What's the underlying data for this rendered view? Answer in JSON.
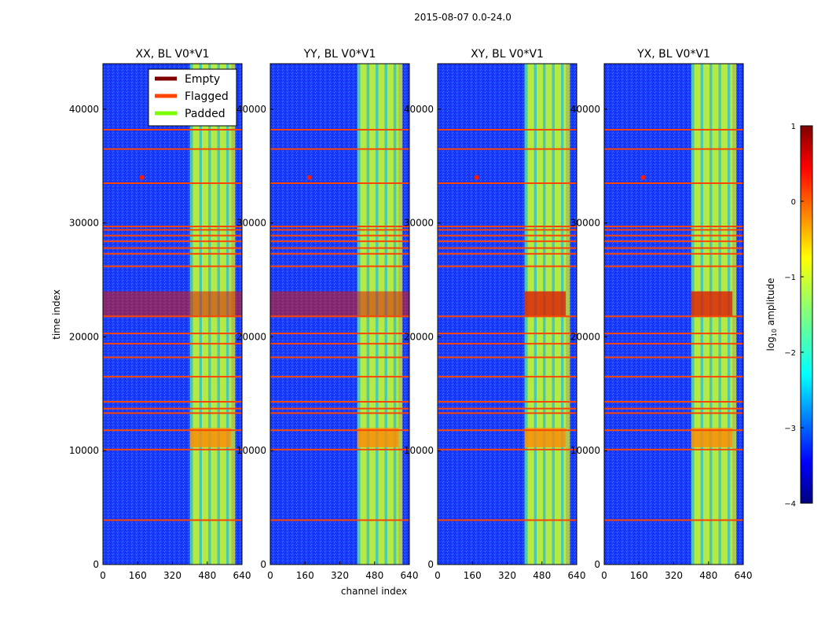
{
  "figure_title": "2015-08-07 0.0-24.0",
  "chart_data": {
    "type": "heatmap",
    "suptitle": "2015-08-07 0.0-24.0",
    "xlabel": "channel index",
    "ylabel": "time index",
    "xlim": [
      0,
      640
    ],
    "ylim": [
      0,
      44000
    ],
    "xticks": [
      0,
      160,
      320,
      480,
      640
    ],
    "yticks": [
      0,
      10000,
      20000,
      30000,
      40000
    ],
    "panels": [
      {
        "title": "XX, BL V0*V1",
        "pol": "XX"
      },
      {
        "title": "YY, BL V0*V1",
        "pol": "YY"
      },
      {
        "title": "XY, BL V0*V1",
        "pol": "XY"
      },
      {
        "title": "YX, BL V0*V1",
        "pol": "YX"
      }
    ],
    "legend": {
      "location": "top-left panel, upper right",
      "entries": [
        {
          "label": "Empty",
          "color": "#800000"
        },
        {
          "label": "Flagged",
          "color": "#ff4500"
        },
        {
          "label": "Padded",
          "color": "#7cfc00"
        }
      ]
    },
    "colorbar": {
      "label_prefix": "log",
      "label_sub": "10",
      "label_suffix": " amplitude",
      "range": [
        -4,
        1
      ],
      "ticks": [
        1,
        0,
        -1,
        -2,
        -3,
        -4
      ],
      "colormap": "jet"
    },
    "rfi_band_channels": [
      400,
      590
    ],
    "flagged_time_rows": [
      3900,
      10100,
      11800,
      13300,
      13700,
      14300,
      16500,
      18200,
      19400,
      20300,
      21800,
      26200,
      27300,
      27800,
      28400,
      28900,
      29400,
      29700,
      33500,
      36500,
      38200
    ],
    "strong_burst_time_ranges": [
      [
        21800,
        24000
      ],
      [
        10300,
        12000
      ]
    ],
    "strong_point_source": {
      "channel": 180,
      "time": 34000
    }
  }
}
